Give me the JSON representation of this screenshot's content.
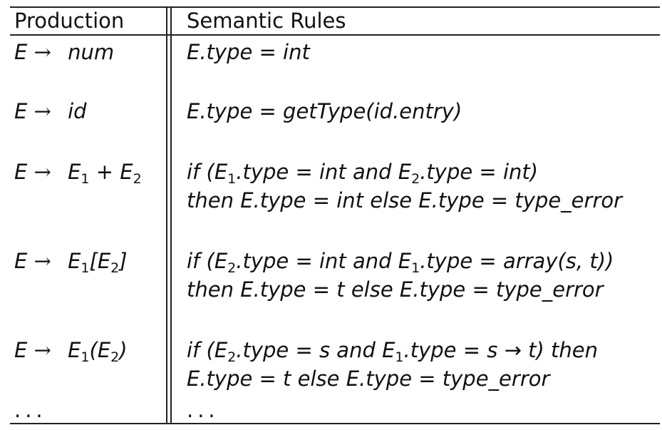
{
  "table": {
    "headers": {
      "production": "Production",
      "semantic_rules": "Semantic Rules"
    },
    "rows": [
      {
        "production": {
          "lhs": "E",
          "arrow": "→",
          "rhs": "num"
        },
        "rule": [
          "E.type = int"
        ]
      },
      {
        "production": {
          "lhs": "E",
          "arrow": "→",
          "rhs": "id"
        },
        "rule": [
          "E.type = getType(id.entry)"
        ]
      },
      {
        "production": {
          "lhs": "E",
          "arrow": "→",
          "rhs": "E1 + E2"
        },
        "rule": [
          "if (E1.type = int and E2.type = int)",
          "then E.type = int else E.type = type_error"
        ]
      },
      {
        "production": {
          "lhs": "E",
          "arrow": "→",
          "rhs": "E1[E2]"
        },
        "rule": [
          "if (E2.type = int and E1.type = array(s, t))",
          "then E.type = t else E.type = type_error"
        ]
      },
      {
        "production": {
          "lhs": "E",
          "arrow": "→",
          "rhs": "E1(E2)"
        },
        "rule": [
          "if (E2.type = s and E1.type = s → t) then",
          "E.type = t else E.type = type_error"
        ]
      }
    ],
    "ellipsis": {
      "production": "...",
      "rule": "..."
    }
  }
}
